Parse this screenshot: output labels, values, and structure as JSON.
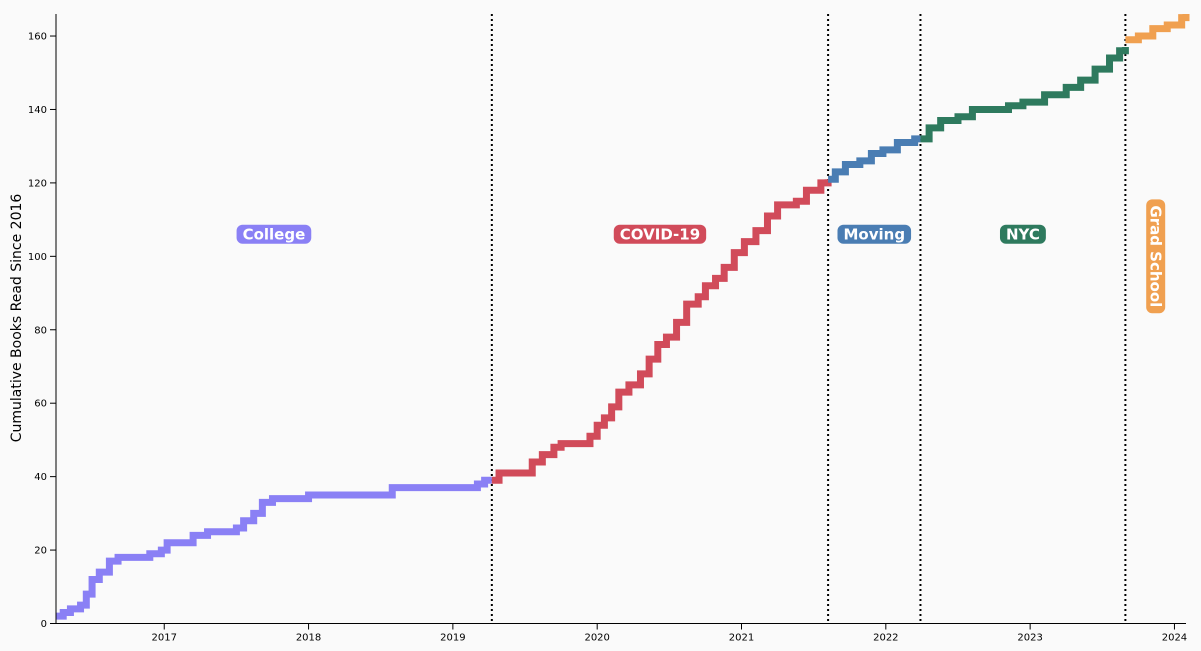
{
  "chart_data": {
    "type": "line",
    "ylabel": "Cumulative Books Read Since 2016",
    "xlabel": "",
    "xlim": [
      2016.25,
      2024.08
    ],
    "ylim": [
      0,
      166
    ],
    "x_ticks": [
      {
        "value": 2017,
        "label": "2017"
      },
      {
        "value": 2018,
        "label": "2018"
      },
      {
        "value": 2019,
        "label": "2019"
      },
      {
        "value": 2020,
        "label": "2020"
      },
      {
        "value": 2021,
        "label": "2021"
      },
      {
        "value": 2022,
        "label": "2022"
      },
      {
        "value": 2023,
        "label": "2023"
      },
      {
        "value": 2024,
        "label": "2024"
      }
    ],
    "y_ticks": [
      {
        "value": 0,
        "label": "0"
      },
      {
        "value": 20,
        "label": "20"
      },
      {
        "value": 40,
        "label": "40"
      },
      {
        "value": 60,
        "label": "60"
      },
      {
        "value": 80,
        "label": "80"
      },
      {
        "value": 100,
        "label": "100"
      },
      {
        "value": 120,
        "label": "120"
      },
      {
        "value": 140,
        "label": "140"
      },
      {
        "value": 160,
        "label": "160"
      }
    ],
    "eras": [
      {
        "label": "College",
        "color": "#8a80f5",
        "start": 2016.25,
        "end": 2019.27,
        "label_orientation": "horizontal",
        "label_y": 106
      },
      {
        "label": "COVID-19",
        "color": "#d14b5a",
        "start": 2019.27,
        "end": 2021.6,
        "label_orientation": "horizontal",
        "label_y": 106
      },
      {
        "label": "Moving",
        "color": "#4a7db3",
        "start": 2021.6,
        "end": 2022.24,
        "label_orientation": "horizontal",
        "label_y": 106
      },
      {
        "label": "NYC",
        "color": "#2e7a5e",
        "start": 2022.24,
        "end": 2023.66,
        "label_orientation": "horizontal",
        "label_y": 106
      },
      {
        "label": "Grad School",
        "color": "#f0a050",
        "start": 2023.66,
        "end": 2024.08,
        "label_orientation": "vertical",
        "label_y": 100
      }
    ],
    "boundaries": [
      2019.27,
      2021.6,
      2022.24,
      2023.66
    ],
    "series": [
      {
        "era": "College",
        "points": [
          [
            2016.25,
            2
          ],
          [
            2016.3,
            3
          ],
          [
            2016.35,
            4
          ],
          [
            2016.42,
            5
          ],
          [
            2016.46,
            8
          ],
          [
            2016.5,
            12
          ],
          [
            2016.55,
            14
          ],
          [
            2016.62,
            17
          ],
          [
            2016.68,
            18
          ],
          [
            2016.8,
            18
          ],
          [
            2016.9,
            19
          ],
          [
            2016.98,
            20
          ],
          [
            2017.02,
            22
          ],
          [
            2017.15,
            22
          ],
          [
            2017.2,
            24
          ],
          [
            2017.3,
            25
          ],
          [
            2017.4,
            25
          ],
          [
            2017.5,
            26
          ],
          [
            2017.55,
            28
          ],
          [
            2017.62,
            30
          ],
          [
            2017.68,
            33
          ],
          [
            2017.75,
            34
          ],
          [
            2017.95,
            34
          ],
          [
            2018.0,
            35
          ],
          [
            2018.55,
            35
          ],
          [
            2018.58,
            37
          ],
          [
            2019.12,
            37
          ],
          [
            2019.17,
            38
          ],
          [
            2019.22,
            39
          ],
          [
            2019.27,
            39
          ]
        ]
      },
      {
        "era": "COVID-19",
        "points": [
          [
            2019.27,
            39
          ],
          [
            2019.32,
            41
          ],
          [
            2019.48,
            41
          ],
          [
            2019.55,
            44
          ],
          [
            2019.62,
            46
          ],
          [
            2019.7,
            48
          ],
          [
            2019.75,
            49
          ],
          [
            2019.9,
            49
          ],
          [
            2019.95,
            51
          ],
          [
            2020.0,
            54
          ],
          [
            2020.05,
            56
          ],
          [
            2020.1,
            59
          ],
          [
            2020.15,
            63
          ],
          [
            2020.22,
            65
          ],
          [
            2020.3,
            68
          ],
          [
            2020.36,
            72
          ],
          [
            2020.42,
            76
          ],
          [
            2020.48,
            78
          ],
          [
            2020.55,
            82
          ],
          [
            2020.62,
            87
          ],
          [
            2020.7,
            89
          ],
          [
            2020.75,
            92
          ],
          [
            2020.82,
            94
          ],
          [
            2020.88,
            97
          ],
          [
            2020.95,
            101
          ],
          [
            2021.02,
            104
          ],
          [
            2021.1,
            107
          ],
          [
            2021.18,
            111
          ],
          [
            2021.25,
            114
          ],
          [
            2021.38,
            115
          ],
          [
            2021.45,
            118
          ],
          [
            2021.55,
            120
          ],
          [
            2021.6,
            121
          ]
        ]
      },
      {
        "era": "Moving",
        "points": [
          [
            2021.6,
            121
          ],
          [
            2021.65,
            123
          ],
          [
            2021.72,
            125
          ],
          [
            2021.82,
            126
          ],
          [
            2021.9,
            128
          ],
          [
            2021.98,
            129
          ],
          [
            2022.08,
            131
          ],
          [
            2022.2,
            132
          ],
          [
            2022.24,
            132
          ]
        ]
      },
      {
        "era": "NYC",
        "points": [
          [
            2022.24,
            132
          ],
          [
            2022.3,
            135
          ],
          [
            2022.38,
            137
          ],
          [
            2022.5,
            138
          ],
          [
            2022.6,
            140
          ],
          [
            2022.85,
            141
          ],
          [
            2022.95,
            142
          ],
          [
            2023.1,
            144
          ],
          [
            2023.25,
            146
          ],
          [
            2023.35,
            148
          ],
          [
            2023.45,
            151
          ],
          [
            2023.55,
            154
          ],
          [
            2023.62,
            156
          ],
          [
            2023.66,
            157
          ]
        ]
      },
      {
        "era": "Grad School",
        "points": [
          [
            2023.66,
            159
          ],
          [
            2023.75,
            160
          ],
          [
            2023.85,
            162
          ],
          [
            2023.95,
            163
          ],
          [
            2024.05,
            165
          ],
          [
            2024.08,
            166
          ]
        ]
      }
    ]
  }
}
